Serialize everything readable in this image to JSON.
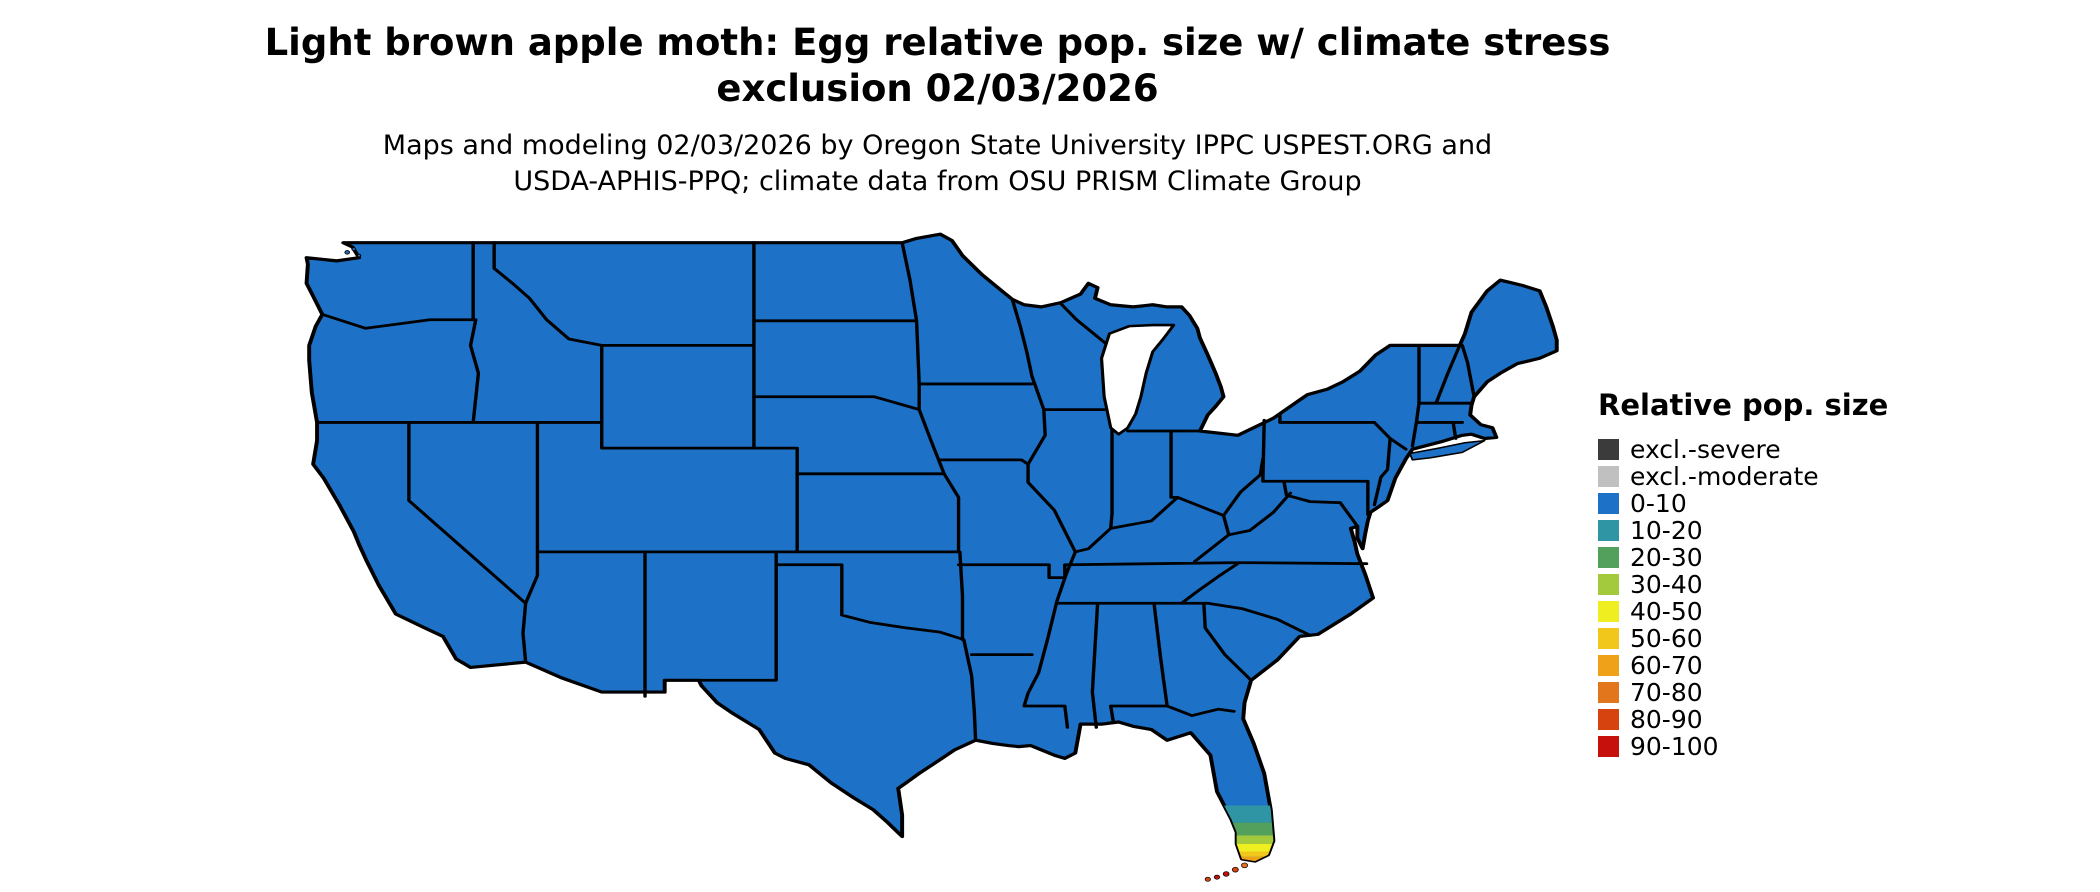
{
  "title": {
    "line1": "Light brown apple moth: Egg relative pop. size w/ climate stress",
    "line2": "exclusion 02/03/2026"
  },
  "subtitle": {
    "line1": "Maps and modeling 02/03/2026 by Oregon State University IPPC USPEST.ORG and",
    "line2": "USDA-APHIS-PPQ; climate data from OSU PRISM Climate Group"
  },
  "legend": {
    "title": "Relative pop. size",
    "items": [
      {
        "label": "excl.-severe",
        "color": "#3b3b3b"
      },
      {
        "label": "excl.-moderate",
        "color": "#c0c0c0"
      },
      {
        "label": "0-10",
        "color": "#1d72c8"
      },
      {
        "label": "10-20",
        "color": "#2f95a5"
      },
      {
        "label": "20-30",
        "color": "#53a05c"
      },
      {
        "label": "30-40",
        "color": "#a3c93c"
      },
      {
        "label": "40-50",
        "color": "#eeee20"
      },
      {
        "label": "50-60",
        "color": "#f2c71b"
      },
      {
        "label": "60-70",
        "color": "#efa11a"
      },
      {
        "label": "70-80",
        "color": "#e2761d"
      },
      {
        "label": "80-90",
        "color": "#d6430f"
      },
      {
        "label": "90-100",
        "color": "#c5100c"
      }
    ]
  },
  "map": {
    "border_color": "#000000",
    "water_color": "#ffffff"
  }
}
